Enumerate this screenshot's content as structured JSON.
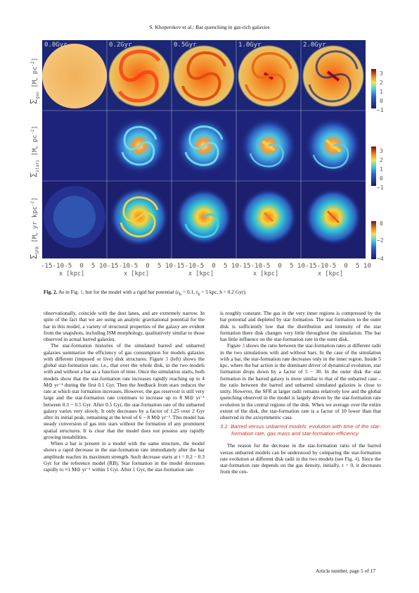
{
  "header": {
    "running_title": "S. Khoperskov et al.: Bar quenching in gas-rich galaxies"
  },
  "figure": {
    "time_labels": [
      "0.0Gyr",
      "0.2Gyr",
      "0.5Gyr",
      "1.0Gyr",
      "2.0Gyr"
    ],
    "row_labels": [
      {
        "sym": "Σ",
        "sub": "gas",
        "unit": "[M",
        "unit2": "pc",
        "exp": "-2",
        "close": "]"
      },
      {
        "sym": "Σ",
        "sub": "stars",
        "unit": "[M",
        "unit2": "pc",
        "exp": "-2",
        "close": "]"
      },
      {
        "sym": "Σ",
        "sub": "SFR",
        "unit": "[M",
        "unit2": "yr",
        "unit3": "kpc",
        "exp": "-2",
        "close": "]"
      }
    ],
    "colorbar_ticks": [
      [
        "3",
        "2",
        "1",
        "0",
        "−1"
      ],
      [
        "3",
        "2",
        "1",
        "0",
        "−1"
      ],
      [
        "0",
        "−2",
        "−4"
      ]
    ],
    "x_ticks": "-15-10-5  0  5 10-15-10-5  0  5 10-15-10-5  0  5 10-15-10-5  0  5 10-15-10-5  0  5 10",
    "x_label": "x [kpc]"
  },
  "caption": {
    "label": "Fig. 2.",
    "text_a": " As in Fig. ",
    "ref1": "1",
    "text_b": ", but for the model with a rigid bar potential (ε",
    "sub_b": "b",
    "text_c": " = 0.1, r",
    "sub_c": "b",
    "text_d": " = 5 kpc, h = 0.2 Gyr)."
  },
  "left_col": {
    "p1": "observationally, coincide with the dust lanes, and are extremely narrow. In spite of the fact that we are using an analytic gravitational potential for the bar in this model, a variety of structural properties of the galaxy are evident from the snapshots, including ISM morphology, qualitatively similar to those observed in actual barred galaxies.",
    "p2a": "The star-formation histories of the simulated barred and unbarred galaxies summarize the efficiency of gas consumption for models galaxies with different (imposed or live) disk structures. Figure ",
    "p2ref": "3",
    "p2b": " (left) shows the global star-formation rate, i.e., that over the whole disk, in the two models with and without a bar as a function of time. Once the simulation starts, both models show that the star-formation rate increases rapidly reaching up to 4 M⊙ yr⁻¹ during the first 0.1 Gyr. Then the feedback from stars reduces the rate at which star formation increases. However, the gas reservoir is still very large and the star-formation rate continues to increase up to 8 M⊙ yr⁻¹ between 0.3 − 0.5 Gyr. After 0.5 Gyr, the star-formation rate of the unbarred galaxy varies very slowly. It only decreases by a factor of 1.25 over 2 Gyr after its initial peak, remaining at the level of 6 − 8 M⊙ yr⁻¹. This model has steady conversion of gas into stars without the formation of any prominent spatial structures. It is clear that the model does not possess any rapidly growing instabilities.",
    "p3": "When a bar is present in a model with the same structure, the model shows a rapid decrease in the star-formation rate immediately after the bar amplitude reaches its maximum strength. Such decrease starts at t = 0.2 − 0.3 Gyr for the reference model (RB). Star formation in the model decreases rapidly to ≈1 M⊙ yr⁻¹ within 1 Gyr. After 1 Gyr, the star-formation rate"
  },
  "right_col": {
    "p1": "is roughly constant. The gas in the very inner regions is compressed by the bar potential and depleted by star formation. The star formation in the outer disk is sufficiently low that the distribution and intensity of the star formation there disk changes very little throughout the simulation. The bar has little influence on the star-formation rate in the outer disk.",
    "p2a": "Figure ",
    "p2ref": "3",
    "p2b": " shows the ratio between the star-formation rates at different radii in the two simulations with and without bars. In the case of the simulation with a bar, the star-formation rate decreases only in the inner region. Inside 5 kpc, where the bar action is the dominant driver of dynamical evolution, star formation drops down by a factor of 5 − 30. In the outer disk the star formation in the barred galaxy is more similar to that of the unbarred case – the ratio between the barred and unbarred simulated galaxies is close to unity. However, the SFR at larger radii remains relatively low and the global quenching observed in the model is largely driven by the star-formation rate evolution in the central regions of the disk. When we average over the entire extent of the disk, the star-formation rate is a factor of 10 lower than that observed in the axisymmetric case.",
    "section_num": "3.2.",
    "section_title": "Barred versus unbarred models: evolution with time of the star-formation rate, gas mass and star-formation efficiency",
    "p3a": "The reason for the decrease in the star-formation ratio of the barred versus unbarred models can be understood by comparing the star-formation rate evolution at different disk radii in the two models (see Fig. ",
    "p3ref": "4",
    "p3b": "). Since the star-formation rate depends on the gas density, initially, t = 0, it decreases from the cen-"
  },
  "footer": {
    "page": "Article number, page 5 of 17"
  }
}
